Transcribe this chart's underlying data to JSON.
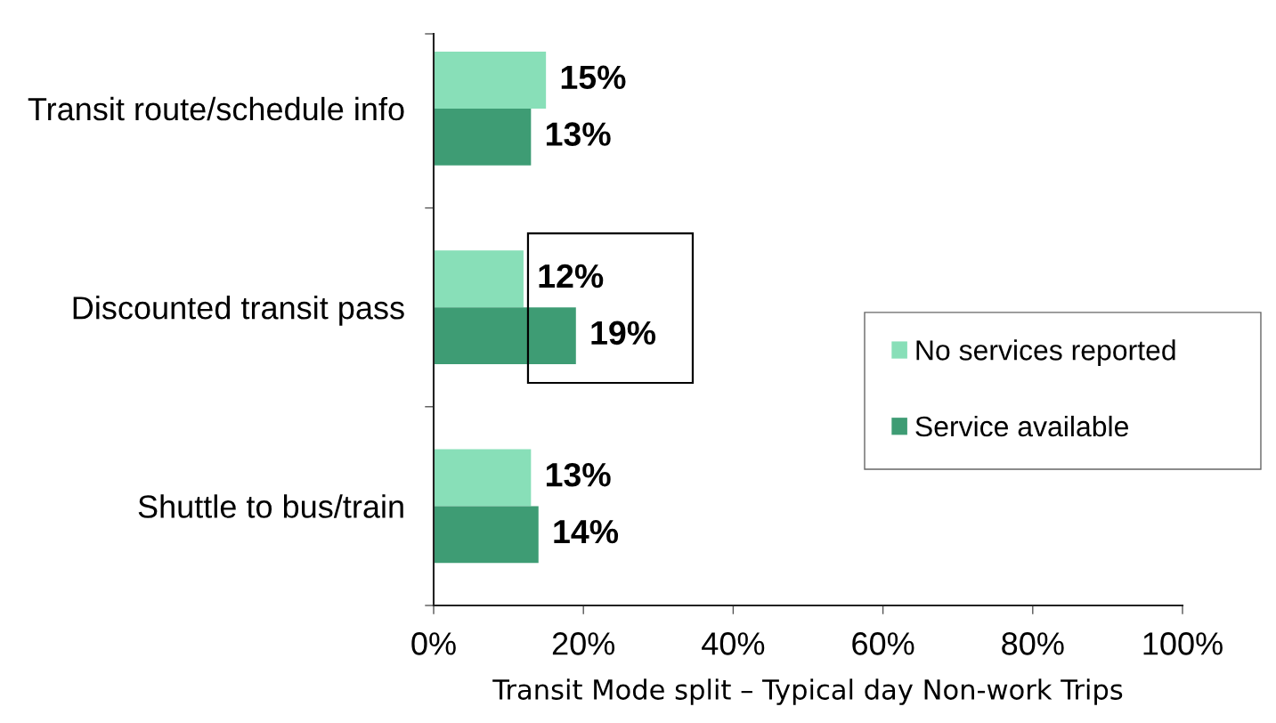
{
  "chart_data": {
    "type": "bar",
    "orientation": "horizontal",
    "categories": [
      "Transit route/schedule info",
      "Discounted transit pass",
      "Shuttle to bus/train"
    ],
    "series": [
      {
        "name": "No services reported",
        "color": "#88dfb8",
        "values": [
          15,
          12,
          13
        ],
        "value_labels": [
          "15%",
          "12%",
          "13%"
        ]
      },
      {
        "name": "Service available",
        "color": "#3e9c74",
        "values": [
          13,
          19,
          14
        ],
        "value_labels": [
          "13%",
          "19%",
          "14%"
        ]
      }
    ],
    "xlabel": "Transit Mode split – Typical day Non-work Trips",
    "xlim": [
      0,
      100
    ],
    "xticks": [
      {
        "value": 0,
        "label": "0%"
      },
      {
        "value": 20,
        "label": "20%"
      },
      {
        "value": 40,
        "label": "40%"
      },
      {
        "value": 60,
        "label": "60%"
      },
      {
        "value": 80,
        "label": "80%"
      },
      {
        "value": 100,
        "label": "100%"
      }
    ],
    "legend": "right"
  }
}
